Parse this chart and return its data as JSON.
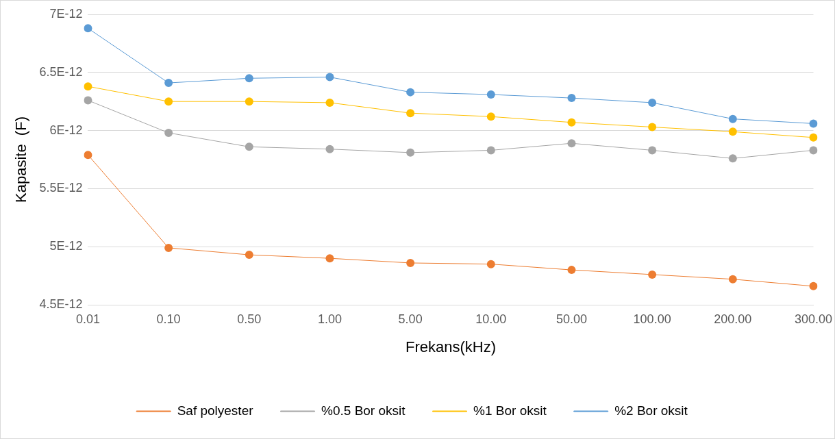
{
  "chart_data": {
    "type": "line",
    "xlabel": "Frekans(kHz)",
    "ylabel": "Kapasite  (F)",
    "categories": [
      "0.01",
      "0.10",
      "0.50",
      "1.00",
      "5.00",
      "10.00",
      "50.00",
      "100.00",
      "200.00",
      "300.00"
    ],
    "series": [
      {
        "name": "Saf polyester",
        "color": "#ed7d31",
        "values": [
          5.79e-12,
          4.99e-12,
          4.93e-12,
          4.9e-12,
          4.86e-12,
          4.85e-12,
          4.8e-12,
          4.76e-12,
          4.72e-12,
          4.66e-12
        ]
      },
      {
        "name": "%0.5 Bor oksit",
        "color": "#a5a5a5",
        "values": [
          6.26e-12,
          5.98e-12,
          5.86e-12,
          5.84e-12,
          5.81e-12,
          5.83e-12,
          5.89e-12,
          5.83e-12,
          5.76e-12,
          5.83e-12
        ]
      },
      {
        "name": "%1 Bor oksit",
        "color": "#ffc000",
        "values": [
          6.38e-12,
          6.25e-12,
          6.25e-12,
          6.24e-12,
          6.15e-12,
          6.12e-12,
          6.07e-12,
          6.03e-12,
          5.99e-12,
          5.94e-12
        ]
      },
      {
        "name": "%2 Bor oksit",
        "color": "#5b9bd5",
        "values": [
          6.88e-12,
          6.41e-12,
          6.45e-12,
          6.46e-12,
          6.33e-12,
          6.31e-12,
          6.28e-12,
          6.24e-12,
          6.1e-12,
          6.06e-12
        ]
      }
    ],
    "ylim": [
      4.5e-12,
      7e-12
    ],
    "yticks": [
      {
        "value": 4.5e-12,
        "label": "4.5E-12"
      },
      {
        "value": 5e-12,
        "label": "5E-12"
      },
      {
        "value": 5.5e-12,
        "label": "5.5E-12"
      },
      {
        "value": 6e-12,
        "label": "6E-12"
      },
      {
        "value": 6.5e-12,
        "label": "6.5E-12"
      },
      {
        "value": 7e-12,
        "label": "7E-12"
      }
    ],
    "grid": "y",
    "legend": "bottom",
    "marker": "circle",
    "line_style": "solid"
  }
}
